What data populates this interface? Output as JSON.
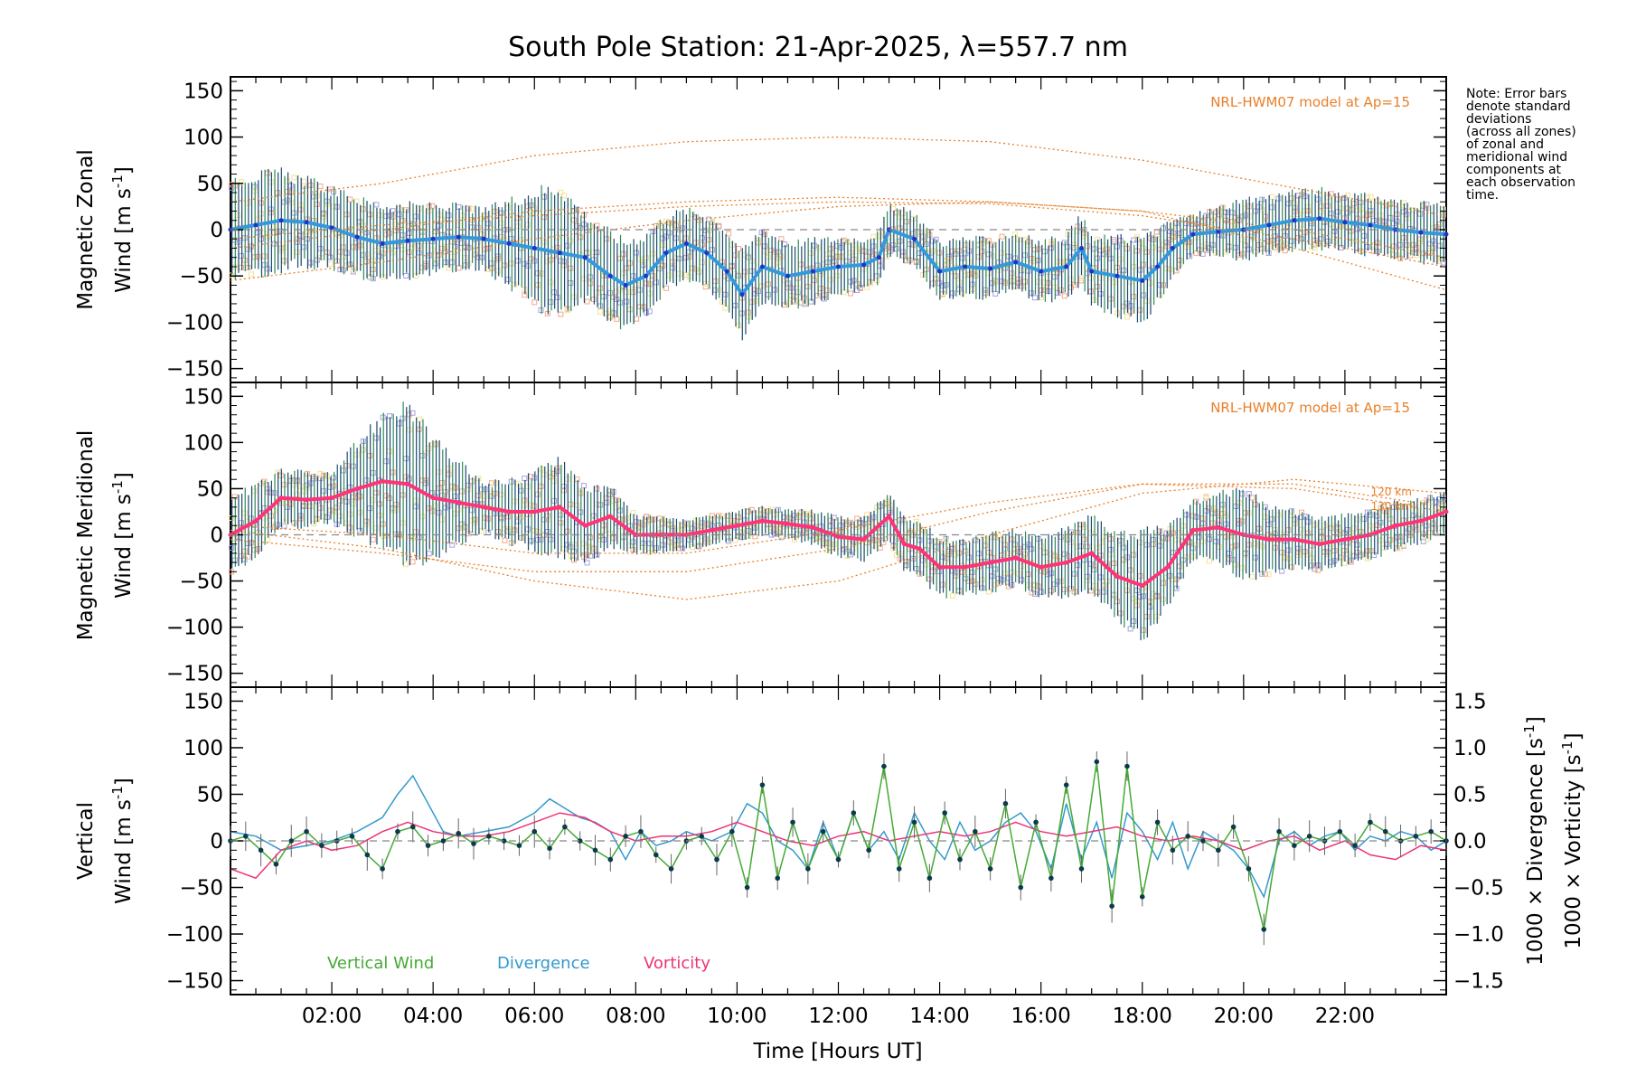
{
  "colors": {
    "zonal_mean": "#3399dd",
    "zonal_mean_dark": "#2233cc",
    "meridional_mean": "#ff3377",
    "errorbar": "#1a4a6e",
    "errorbar_alt": "#2e8b57",
    "scatter_lavender": "#a9a2e0",
    "scatter_salmon": "#f5a98c",
    "scatter_yellow": "#f5e29a",
    "model": "#e8802a",
    "vertical_wind": "#44aa33",
    "vertical_dots": "#0d3a4a",
    "divergence": "#3399cc",
    "vorticity": "#ee3377",
    "zero_line": "#888888"
  },
  "chart_data": [
    {
      "type": "line",
      "panel": "zonal",
      "title": "South Pole Station: 21-Apr-2025, λ=557.7 nm",
      "ylabel": [
        "Magnetic Zonal",
        "Wind [m s",
        "-1",
        "]"
      ],
      "ylim": [
        -165,
        165
      ],
      "xlim": [
        0,
        24
      ],
      "yticks": [
        "150",
        "100",
        "50",
        "0",
        "−50",
        "−100",
        "−150"
      ],
      "model_label": "NRL-HWM07 model at Ap=15",
      "mean_series": {
        "x": [
          0.0,
          0.5,
          1.0,
          1.5,
          2.0,
          2.5,
          3.0,
          3.5,
          4.0,
          4.5,
          5.0,
          5.5,
          6.0,
          6.5,
          7.0,
          7.5,
          7.8,
          8.2,
          8.6,
          9.0,
          9.4,
          9.8,
          10.1,
          10.5,
          11.0,
          11.5,
          12.0,
          12.5,
          12.8,
          13.0,
          13.5,
          14.0,
          14.5,
          15.0,
          15.5,
          16.0,
          16.5,
          16.8,
          17.0,
          17.5,
          18.0,
          18.3,
          18.6,
          19.0,
          19.5,
          20.0,
          20.5,
          21.0,
          21.5,
          22.0,
          22.5,
          23.0,
          23.5,
          24.0
        ],
        "y": [
          0,
          5,
          10,
          8,
          2,
          -8,
          -15,
          -12,
          -10,
          -8,
          -10,
          -15,
          -20,
          -25,
          -30,
          -50,
          -60,
          -50,
          -25,
          -15,
          -25,
          -45,
          -70,
          -40,
          -50,
          -45,
          -40,
          -38,
          -30,
          0,
          -10,
          -45,
          -40,
          -42,
          -35,
          -45,
          -40,
          -20,
          -45,
          -50,
          -55,
          -40,
          -20,
          -5,
          -2,
          0,
          5,
          10,
          12,
          8,
          5,
          0,
          -3,
          -5
        ]
      },
      "errorbar_sd": {
        "x": [
          0,
          1,
          2,
          3,
          4,
          5,
          6,
          6.5,
          7,
          8,
          9,
          10,
          11,
          12,
          13,
          14,
          15,
          16,
          17,
          18,
          19,
          20,
          21,
          22,
          23,
          24
        ],
        "sd": [
          55,
          50,
          40,
          40,
          35,
          30,
          60,
          70,
          45,
          45,
          35,
          45,
          35,
          30,
          25,
          30,
          30,
          30,
          35,
          45,
          20,
          30,
          30,
          30,
          30,
          30
        ]
      },
      "model_curves": [
        {
          "x": [
            0,
            3,
            6,
            9,
            12,
            15,
            18,
            21,
            24
          ],
          "y": [
            30,
            50,
            80,
            95,
            100,
            95,
            75,
            45,
            15
          ]
        },
        {
          "x": [
            0,
            3,
            6,
            9,
            12,
            15,
            18,
            21,
            24
          ],
          "y": [
            -55,
            -35,
            -10,
            10,
            25,
            30,
            20,
            0,
            -30
          ]
        },
        {
          "x": [
            0,
            3,
            6,
            9,
            12,
            15,
            18,
            21,
            24
          ],
          "y": [
            -20,
            0,
            20,
            30,
            35,
            30,
            20,
            -20,
            -65
          ]
        },
        {
          "x": [
            0,
            3,
            6,
            9,
            12,
            15,
            18,
            21,
            24
          ],
          "y": [
            -10,
            5,
            15,
            25,
            30,
            28,
            15,
            -10,
            -40
          ]
        }
      ]
    },
    {
      "type": "line",
      "panel": "meridional",
      "ylabel": [
        "Magnetic Meridional",
        "Wind [m s",
        "-1",
        "]"
      ],
      "ylim": [
        -165,
        165
      ],
      "xlim": [
        0,
        24
      ],
      "yticks": [
        "150",
        "100",
        "50",
        "0",
        "−50",
        "−100",
        "−150"
      ],
      "model_label": "NRL-HWM07 model at Ap=15",
      "model_alt_labels": [
        "120 km",
        "130 km"
      ],
      "mean_series": {
        "x": [
          0.0,
          0.5,
          1.0,
          1.5,
          2.0,
          2.5,
          3.0,
          3.5,
          4.0,
          4.5,
          5.0,
          5.5,
          6.0,
          6.5,
          7.0,
          7.5,
          8.0,
          8.5,
          9.0,
          9.5,
          10.0,
          10.5,
          11.0,
          11.5,
          12.0,
          12.5,
          13.0,
          13.3,
          13.6,
          14.0,
          14.5,
          15.0,
          15.5,
          16.0,
          16.5,
          17.0,
          17.5,
          18.0,
          18.5,
          19.0,
          19.5,
          20.0,
          20.5,
          21.0,
          21.5,
          22.0,
          22.5,
          23.0,
          23.5,
          24.0
        ],
        "y": [
          0,
          15,
          40,
          38,
          40,
          50,
          58,
          55,
          40,
          35,
          30,
          25,
          25,
          30,
          10,
          20,
          0,
          0,
          0,
          5,
          10,
          15,
          12,
          8,
          -2,
          -5,
          20,
          -10,
          -15,
          -35,
          -35,
          -30,
          -25,
          -35,
          -30,
          -20,
          -45,
          -55,
          -35,
          5,
          8,
          0,
          -5,
          -5,
          -10,
          -5,
          0,
          10,
          15,
          25
        ]
      },
      "errorbar_sd": {
        "x": [
          0,
          1,
          2,
          3,
          3.5,
          4,
          5,
          6,
          6.5,
          7,
          8,
          9,
          10,
          11,
          12,
          13,
          14,
          15,
          16,
          17,
          18,
          19,
          20,
          21,
          22,
          23,
          24
        ],
        "sd": [
          40,
          30,
          25,
          70,
          85,
          60,
          25,
          40,
          55,
          40,
          20,
          15,
          15,
          15,
          20,
          25,
          30,
          30,
          30,
          40,
          55,
          30,
          45,
          30,
          25,
          25,
          20
        ]
      },
      "model_curves": [
        {
          "x": [
            0,
            3,
            6,
            9,
            12,
            15,
            18,
            21,
            24
          ],
          "y": [
            5,
            -15,
            -50,
            -70,
            -50,
            0,
            45,
            60,
            45
          ]
        },
        {
          "x": [
            0,
            3,
            6,
            9,
            12,
            15,
            18,
            21,
            24
          ],
          "y": [
            -5,
            -20,
            -40,
            -40,
            -15,
            25,
            55,
            55,
            30
          ]
        },
        {
          "x": [
            0,
            3,
            6,
            9,
            12,
            15,
            18,
            21,
            24
          ],
          "y": [
            10,
            0,
            -20,
            -20,
            5,
            35,
            55,
            50,
            25
          ]
        }
      ]
    },
    {
      "type": "line",
      "panel": "vertical",
      "ylabel_vertical": [
        "Vertical",
        "Wind [m s",
        "-1",
        "]"
      ],
      "ylabel_divergence": [
        "1000 × Divergence [s",
        "-1",
        "]"
      ],
      "ylabel_vorticity": [
        "1000 × Vorticity [s",
        "-1",
        "]"
      ],
      "ylim": [
        -165,
        165
      ],
      "y2lim": [
        -1.65,
        1.65
      ],
      "xlim": [
        0,
        24
      ],
      "yticks": [
        "150",
        "100",
        "50",
        "0",
        "−50",
        "−100",
        "−150"
      ],
      "y2ticks": [
        "1.5",
        "1.0",
        "0.5",
        "0.0",
        "−0.5",
        "−1.0",
        "−1.5"
      ],
      "xticks": [
        "02:00",
        "04:00",
        "06:00",
        "08:00",
        "10:00",
        "12:00",
        "14:00",
        "16:00",
        "18:00",
        "20:00",
        "22:00"
      ],
      "xlabel": "Time [Hours UT]",
      "legend": [
        "Vertical Wind",
        "Divergence",
        "Vorticity"
      ],
      "vertical_wind": {
        "x": [
          0.0,
          0.3,
          0.6,
          0.9,
          1.2,
          1.5,
          1.8,
          2.1,
          2.4,
          2.7,
          3.0,
          3.3,
          3.6,
          3.9,
          4.2,
          4.5,
          4.8,
          5.1,
          5.4,
          5.7,
          6.0,
          6.3,
          6.6,
          6.9,
          7.2,
          7.5,
          7.8,
          8.1,
          8.4,
          8.7,
          9.0,
          9.3,
          9.6,
          9.9,
          10.2,
          10.5,
          10.8,
          11.1,
          11.4,
          11.7,
          12.0,
          12.3,
          12.6,
          12.9,
          13.2,
          13.5,
          13.8,
          14.1,
          14.4,
          14.7,
          15.0,
          15.3,
          15.6,
          15.9,
          16.2,
          16.5,
          16.8,
          17.1,
          17.4,
          17.7,
          18.0,
          18.3,
          18.6,
          18.9,
          19.2,
          19.5,
          19.8,
          20.1,
          20.4,
          20.7,
          21.0,
          21.3,
          21.6,
          21.9,
          22.2,
          22.5,
          22.8,
          23.1,
          23.4,
          23.7,
          24.0
        ],
        "y": [
          0,
          5,
          -10,
          -25,
          0,
          10,
          -5,
          0,
          5,
          -15,
          -30,
          10,
          15,
          -5,
          0,
          8,
          -3,
          5,
          0,
          -5,
          10,
          -8,
          15,
          0,
          -10,
          -20,
          5,
          10,
          -15,
          -30,
          0,
          5,
          -20,
          10,
          -50,
          60,
          -40,
          20,
          -30,
          10,
          -20,
          30,
          -10,
          80,
          -30,
          20,
          -40,
          30,
          -20,
          10,
          -30,
          40,
          -50,
          20,
          -40,
          60,
          -30,
          85,
          -70,
          80,
          -60,
          20,
          -10,
          5,
          0,
          -10,
          15,
          -30,
          -95,
          10,
          -5,
          5,
          0,
          10,
          -5,
          20,
          10,
          0,
          5,
          10,
          0
        ]
      },
      "divergence": {
        "x": [
          0.0,
          0.5,
          1.0,
          1.5,
          2.0,
          2.5,
          3.0,
          3.3,
          3.6,
          3.9,
          4.2,
          4.5,
          5.0,
          5.5,
          6.0,
          6.3,
          6.6,
          6.9,
          7.2,
          7.5,
          7.8,
          8.1,
          8.4,
          8.7,
          9.0,
          9.5,
          9.9,
          10.2,
          10.5,
          10.8,
          11.1,
          11.4,
          11.7,
          12.0,
          12.3,
          12.6,
          12.9,
          13.2,
          13.5,
          13.8,
          14.1,
          14.4,
          14.7,
          15.0,
          15.3,
          15.6,
          15.9,
          16.2,
          16.5,
          16.8,
          17.1,
          17.4,
          17.7,
          18.0,
          18.3,
          18.6,
          18.9,
          19.2,
          19.5,
          19.8,
          20.1,
          20.4,
          20.7,
          21.0,
          21.3,
          21.6,
          21.9,
          22.2,
          22.5,
          22.8,
          23.1,
          23.4,
          23.7,
          24.0
        ],
        "y": [
          0.1,
          0.05,
          -0.1,
          -0.05,
          0.0,
          0.1,
          0.25,
          0.5,
          0.7,
          0.4,
          0.1,
          0.05,
          0.1,
          0.15,
          0.3,
          0.45,
          0.35,
          0.25,
          0.2,
          0.1,
          -0.2,
          0.1,
          -0.05,
          0.0,
          0.1,
          0.0,
          0.1,
          0.4,
          0.3,
          0.0,
          -0.1,
          -0.3,
          0.2,
          -0.2,
          0.3,
          -0.1,
          0.1,
          -0.2,
          0.3,
          0.0,
          -0.2,
          0.2,
          -0.1,
          0.0,
          0.2,
          0.3,
          0.1,
          -0.3,
          0.4,
          -0.2,
          0.2,
          -0.4,
          0.3,
          0.1,
          -0.2,
          0.2,
          -0.3,
          0.1,
          0.0,
          -0.1,
          -0.3,
          -0.6,
          0.0,
          0.1,
          -0.05,
          0.05,
          0.1,
          -0.1,
          0.05,
          0.0,
          0.1,
          0.05,
          -0.1,
          0.0
        ]
      },
      "vorticity": {
        "x": [
          0.0,
          0.5,
          1.0,
          1.5,
          2.0,
          2.5,
          3.0,
          3.5,
          4.0,
          4.5,
          5.0,
          5.5,
          6.0,
          6.5,
          7.0,
          7.5,
          8.0,
          8.5,
          9.0,
          9.5,
          10.0,
          10.5,
          11.0,
          11.5,
          12.0,
          12.5,
          13.0,
          13.5,
          14.0,
          14.5,
          15.0,
          15.5,
          16.0,
          16.5,
          17.0,
          17.5,
          18.0,
          18.5,
          19.0,
          19.5,
          20.0,
          20.5,
          21.0,
          21.5,
          22.0,
          22.5,
          23.0,
          23.5,
          24.0
        ],
        "y": [
          -0.3,
          -0.4,
          -0.1,
          0.0,
          -0.1,
          -0.05,
          0.1,
          0.2,
          0.1,
          0.05,
          0.05,
          0.1,
          0.2,
          0.3,
          0.25,
          0.1,
          0.0,
          0.05,
          0.05,
          0.1,
          0.2,
          0.1,
          0.0,
          -0.05,
          0.05,
          0.1,
          0.0,
          0.05,
          0.1,
          0.05,
          0.1,
          0.2,
          0.1,
          0.05,
          0.1,
          0.15,
          0.05,
          0.0,
          0.05,
          0.0,
          -0.1,
          0.0,
          0.05,
          -0.1,
          0.0,
          -0.15,
          -0.2,
          -0.05,
          -0.1
        ]
      }
    }
  ],
  "note_lines": [
    "Note: Error bars",
    "denote standard",
    "deviations",
    "(across all zones)",
    "of zonal and",
    "meridional wind",
    "components at",
    "each observation",
    "time."
  ]
}
